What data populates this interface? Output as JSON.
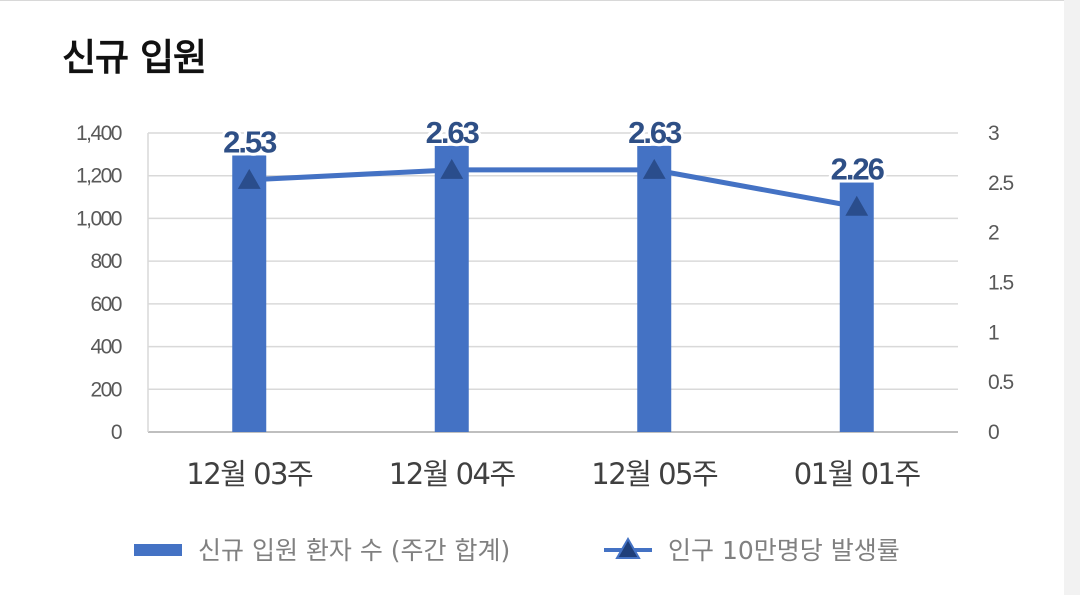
{
  "title": "신규 입원",
  "chart_data": {
    "type": "bar+line",
    "categories": [
      "12월 03주",
      "12월 04주",
      "12월 05주",
      "01월 01주"
    ],
    "series": [
      {
        "name": "신규 입원 환자 수 (주간 합계)",
        "type": "bar",
        "axis": "left",
        "values": [
          1295,
          1340,
          1340,
          1168
        ],
        "color": "#4472c4"
      },
      {
        "name": "인구 10만명당 발생률",
        "type": "line",
        "axis": "right",
        "marker": "triangle",
        "values": [
          2.53,
          2.63,
          2.63,
          2.26
        ],
        "color": "#4472c4"
      }
    ],
    "data_labels": [
      "2.53",
      "2.63",
      "2.63",
      "2.26"
    ],
    "y_left": {
      "lim": [
        0,
        1400
      ],
      "ticks": [
        0,
        200,
        400,
        600,
        800,
        1000,
        1200,
        1400
      ],
      "tick_labels": [
        "0",
        "200",
        "400",
        "600",
        "800",
        "1,000",
        "1,200",
        "1,400"
      ]
    },
    "y_right": {
      "lim": [
        0,
        3
      ],
      "ticks": [
        0,
        0.5,
        1,
        1.5,
        2,
        2.5,
        3
      ],
      "tick_labels": [
        "0",
        "0.5",
        "1",
        "1.5",
        "2",
        "2.5",
        "3"
      ]
    },
    "grid": true,
    "legend_position": "bottom"
  }
}
